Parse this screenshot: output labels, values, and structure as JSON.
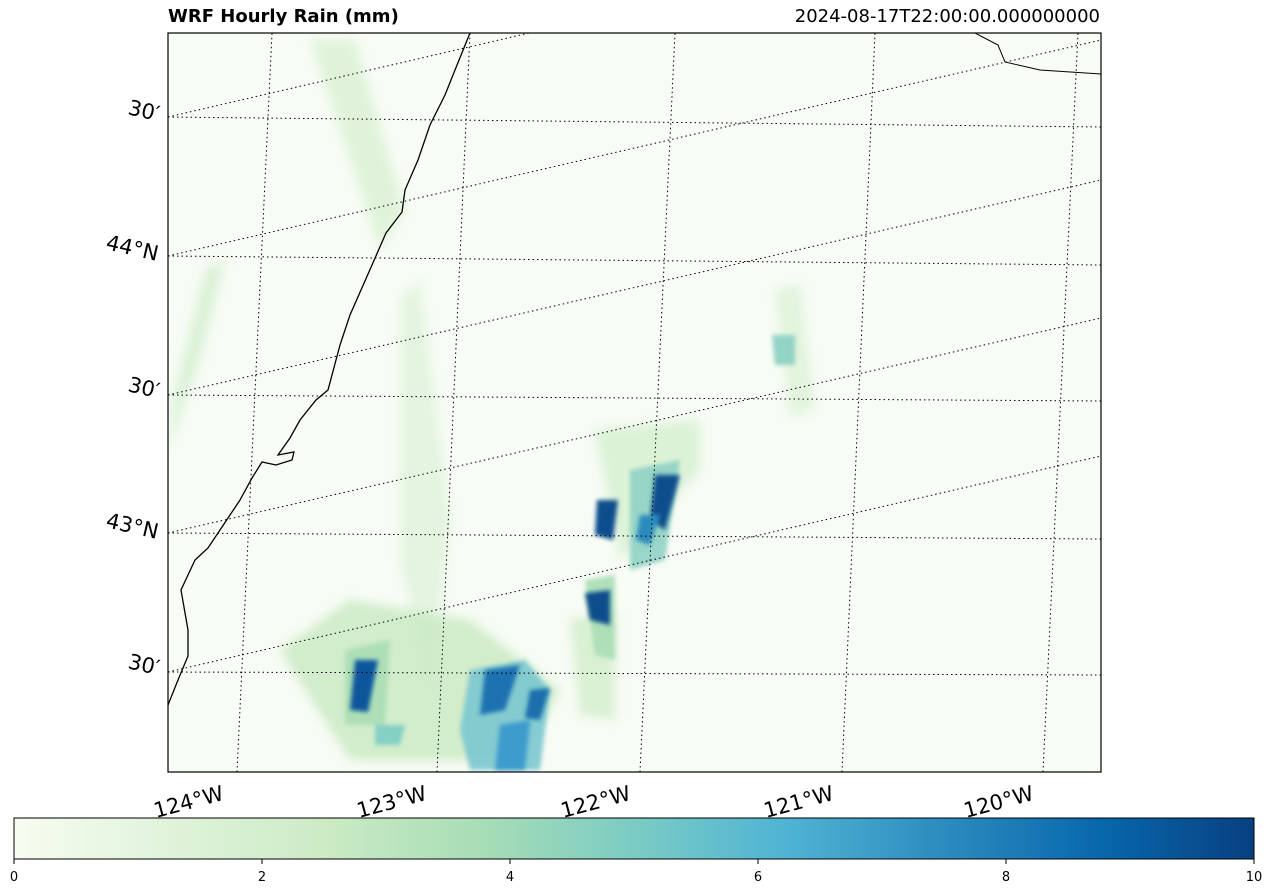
{
  "map": {
    "title": "WRF Hourly Rain (mm)",
    "timestamp": "2024-08-17T22:00:00.000000000",
    "variable_units": "mm",
    "background_color": "#f7fcf5",
    "gridline_style": "dotted black",
    "latitude_labels": [
      "30′",
      "44°N",
      "30′",
      "43°N",
      "30′"
    ],
    "longitude_labels": [
      "124°W",
      "123°W",
      "122°W",
      "121°W",
      "120°W"
    ],
    "features": [
      "coastline",
      "state-border",
      "lat-lon-graticule"
    ],
    "precip_colormap": "GnBu",
    "precip_cells": [
      {
        "area": "north-central",
        "intensity_mm": 10
      },
      {
        "area": "central-west",
        "intensity_mm": 10
      },
      {
        "area": "central-west-lower",
        "intensity_mm": 10
      },
      {
        "area": "south-west",
        "intensity_mm": 10
      },
      {
        "area": "south-central",
        "intensity_mm": 8
      },
      {
        "area": "east",
        "intensity_mm": 4
      }
    ]
  },
  "colorbar": {
    "min": 0,
    "max": 10,
    "ticks": [
      "0",
      "2",
      "4",
      "6",
      "8",
      "10"
    ],
    "colors": [
      "#f7fcf0",
      "#e0f3db",
      "#ccebc5",
      "#a8ddb5",
      "#7bccc4",
      "#4eb3d3",
      "#2b8cbe",
      "#0868ac",
      "#084081"
    ]
  }
}
